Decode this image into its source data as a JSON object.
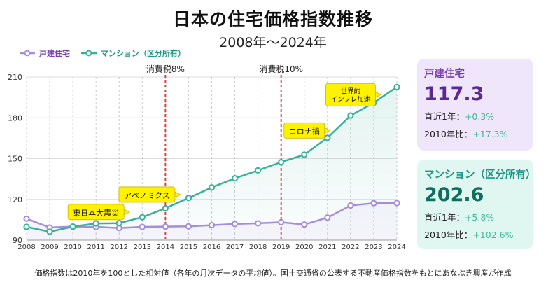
{
  "title": "日本の住宅価格指数推移",
  "subtitle": "2008年〜2024年",
  "chart_data": {
    "type": "line",
    "x": [
      2008,
      2009,
      2010,
      2011,
      2012,
      2013,
      2014,
      2015,
      2016,
      2017,
      2018,
      2019,
      2020,
      2021,
      2022,
      2023,
      2024
    ],
    "series": [
      {
        "name": "戸建住宅",
        "color": "#a58cdc",
        "values": [
          105.8,
          99.3,
          100,
          99.8,
          98.9,
          99.8,
          100,
          100.2,
          101,
          101.9,
          102.4,
          103.2,
          101.5,
          106.6,
          115.5,
          117.2,
          117.3
        ]
      },
      {
        "name": "マンション（区分所有）",
        "color": "#3ab09a",
        "values": [
          99.8,
          96.2,
          100,
          102.3,
          102.5,
          106.9,
          113.5,
          121,
          128.8,
          135.5,
          141.3,
          147.4,
          152.9,
          165.3,
          181.6,
          191.1,
          202.6
        ]
      }
    ],
    "xlabel": "",
    "ylabel": "",
    "ylim": [
      90,
      210
    ],
    "yticks": [
      90,
      120,
      150,
      180,
      210
    ],
    "legend": "top-left",
    "grid": true,
    "vlines": [
      {
        "year": 2014,
        "label": "消費税8%"
      },
      {
        "year": 2019,
        "label": "消費税10%"
      }
    ],
    "annotations": [
      {
        "lines": [
          "東日本大震災"
        ],
        "year": 2011,
        "value": 110.7
      },
      {
        "lines": [
          "アベノミクス"
        ],
        "year": 2013.2,
        "value": 123.5
      },
      {
        "lines": [
          "コロナ禍"
        ],
        "year": 2020,
        "value": 170.7
      },
      {
        "lines": [
          "世界的",
          "インフレ加速"
        ],
        "year": 2022,
        "value": 197
      }
    ]
  },
  "cards": {
    "house": {
      "title": "戸建住宅",
      "value": "117.3",
      "row1_label": "直近1年：",
      "row1_value": "+0.3%",
      "row2_label": "2010年比：",
      "row2_value": "+17.3%"
    },
    "mansion": {
      "title": "マンション（区分所有）",
      "value": "202.6",
      "row1_label": "直近1年：",
      "row1_value": "+5.8%",
      "row2_label": "2010年比：",
      "row2_value": "+102.6%"
    }
  },
  "footnote": "価格指数は2010年を100とした相対値（各年の月次データの平均値）。国土交通省の公表する不動産価格指数をもとにあなぶき興産が作成"
}
